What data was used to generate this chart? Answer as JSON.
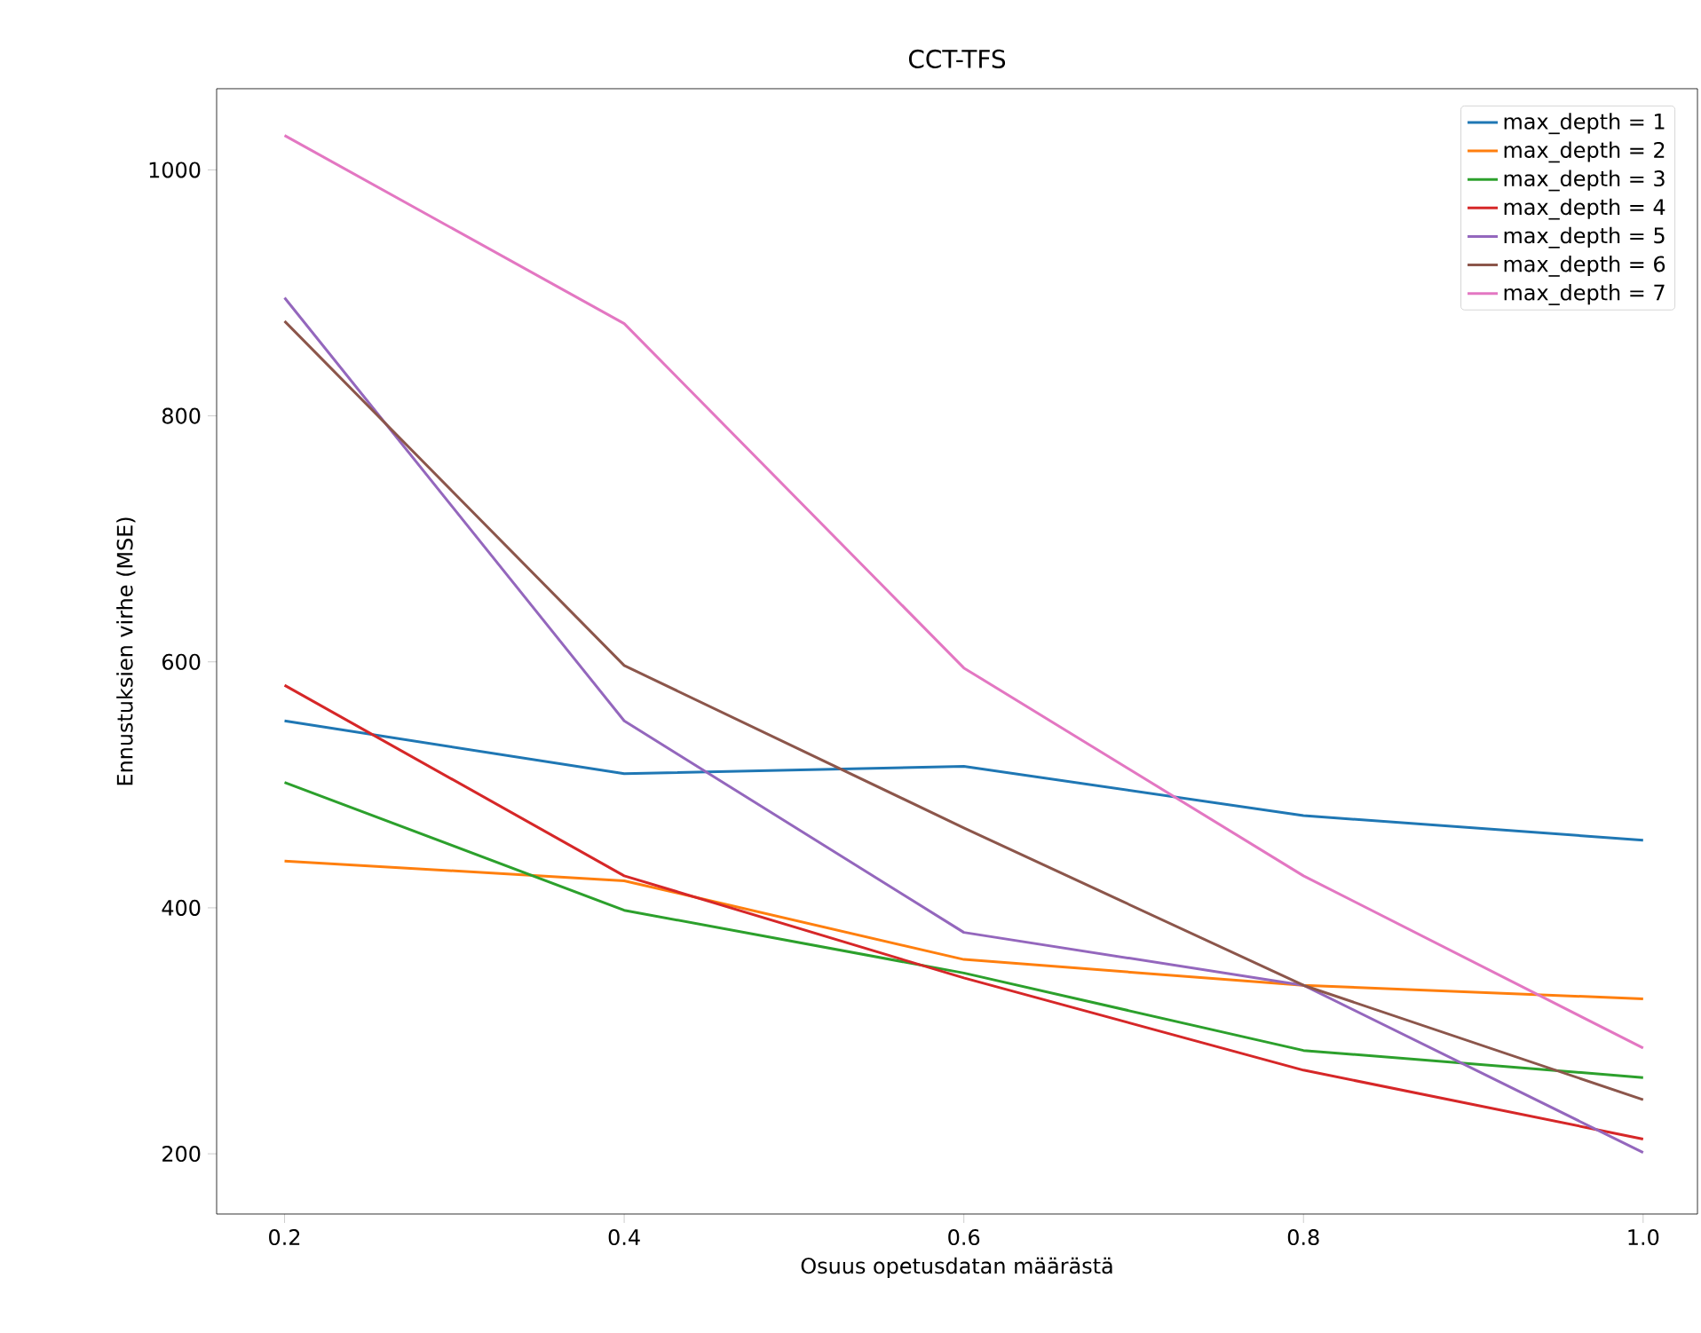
{
  "chart_data": {
    "type": "line",
    "title": "CCT-TFS",
    "xlabel": "Osuus opetusdatan määrästä",
    "ylabel": "Ennustuksien virhe (MSE)",
    "x": [
      0.2,
      0.4,
      0.6,
      0.8,
      1.0
    ],
    "series": [
      {
        "name": "max_depth = 1",
        "color": "#1f77b4",
        "values": [
          552,
          509,
          515,
          475,
          455
        ]
      },
      {
        "name": "max_depth = 2",
        "color": "#ff7f0e",
        "values": [
          438,
          422,
          358,
          337,
          326
        ]
      },
      {
        "name": "max_depth = 3",
        "color": "#2ca02c",
        "values": [
          502,
          398,
          347,
          284,
          262
        ]
      },
      {
        "name": "max_depth = 4",
        "color": "#d62728",
        "values": [
          581,
          426,
          343,
          268,
          212
        ]
      },
      {
        "name": "max_depth = 5",
        "color": "#9467bd",
        "values": [
          896,
          552,
          380,
          337,
          201
        ]
      },
      {
        "name": "max_depth = 6",
        "color": "#8c564b",
        "values": [
          877,
          597,
          465,
          337,
          244
        ]
      },
      {
        "name": "max_depth = 7",
        "color": "#e377c2",
        "values": [
          1028,
          875,
          595,
          426,
          286
        ]
      }
    ],
    "xlim": [
      0.16,
      1.032
    ],
    "ylim": [
      151,
      1066
    ],
    "xticks": [
      {
        "value": 0.2,
        "label": "0.2"
      },
      {
        "value": 0.4,
        "label": "0.4"
      },
      {
        "value": 0.6,
        "label": "0.6"
      },
      {
        "value": 0.8,
        "label": "0.8"
      },
      {
        "value": 1.0,
        "label": "1.0"
      }
    ],
    "yticks": [
      200,
      400,
      600,
      800,
      1000
    ],
    "legend": "top right",
    "grid": false,
    "marker": "none",
    "line_style": "solid"
  }
}
